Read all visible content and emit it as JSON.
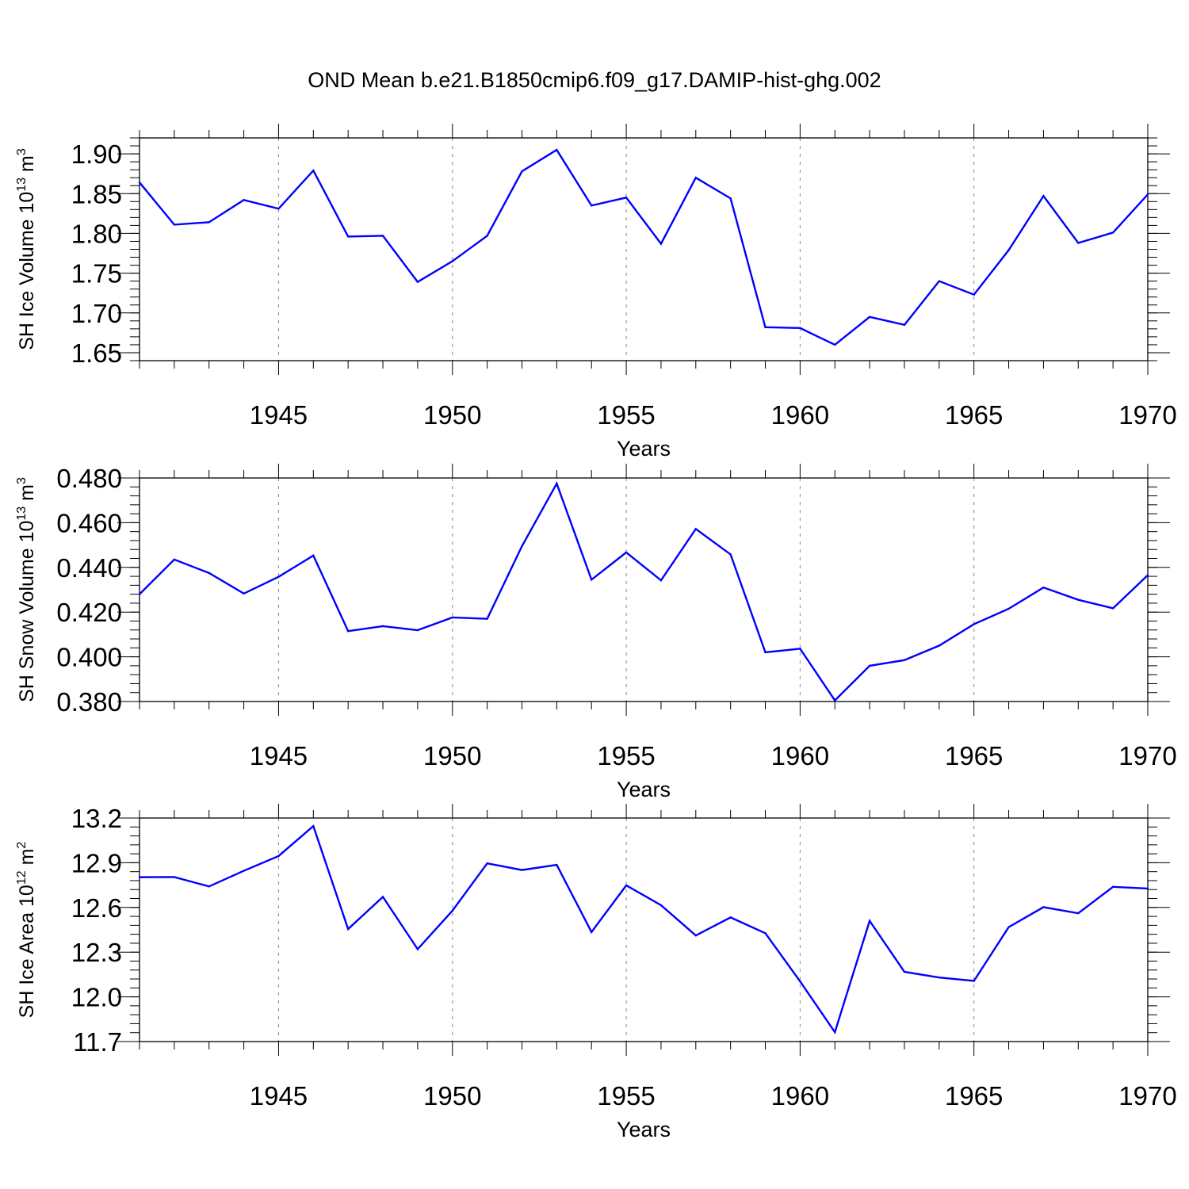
{
  "title": "OND Mean b.e21.B1850cmip6.f09_g17.DAMIP-hist-ghg.002",
  "chart_data": [
    {
      "type": "line",
      "title": "",
      "xlabel": "Years",
      "ylabel_main": "SH Ice Volume 10",
      "ylabel_exp": "13",
      "ylabel_unit": " m",
      "ylabel_unit_exp": "3",
      "xlim": [
        1941,
        1970
      ],
      "ylim": [
        1.64,
        1.92
      ],
      "xticks": [
        1945,
        1950,
        1955,
        1960,
        1965,
        1970
      ],
      "xtick_labels": [
        "1945",
        "1950",
        "1955",
        "1960",
        "1965",
        "1970"
      ],
      "yticks": [
        1.65,
        1.7,
        1.75,
        1.8,
        1.85,
        1.9
      ],
      "ytick_labels": [
        "1.65",
        "1.70",
        "1.75",
        "1.80",
        "1.85",
        "1.90"
      ],
      "grid": "vertical-dashed-at-major-x",
      "color": "#0000ff",
      "x": [
        1941,
        1942,
        1943,
        1944,
        1945,
        1946,
        1947,
        1948,
        1949,
        1950,
        1951,
        1952,
        1953,
        1954,
        1955,
        1956,
        1957,
        1958,
        1959,
        1960,
        1961,
        1962,
        1963,
        1964,
        1965,
        1966,
        1967,
        1968,
        1969,
        1970
      ],
      "values": [
        1.864,
        1.811,
        1.814,
        1.842,
        1.831,
        1.879,
        1.796,
        1.797,
        1.739,
        1.765,
        1.797,
        1.878,
        1.905,
        1.835,
        1.845,
        1.787,
        1.87,
        1.844,
        1.682,
        1.681,
        1.66,
        1.695,
        1.685,
        1.74,
        1.723,
        1.779,
        1.847,
        1.788,
        1.801,
        1.849
      ]
    },
    {
      "type": "line",
      "title": "",
      "xlabel": "Years",
      "ylabel_main": "SH Snow Volume 10",
      "ylabel_exp": "13",
      "ylabel_unit": " m",
      "ylabel_unit_exp": "3",
      "xlim": [
        1941,
        1970
      ],
      "ylim": [
        0.38,
        0.48
      ],
      "xticks": [
        1945,
        1950,
        1955,
        1960,
        1965,
        1970
      ],
      "xtick_labels": [
        "1945",
        "1950",
        "1955",
        "1960",
        "1965",
        "1970"
      ],
      "yticks": [
        0.38,
        0.4,
        0.42,
        0.44,
        0.46,
        0.48
      ],
      "ytick_labels": [
        "0.380",
        "0.400",
        "0.420",
        "0.440",
        "0.460",
        "0.480"
      ],
      "grid": "vertical-dashed-at-major-x",
      "color": "#0000ff",
      "x": [
        1941,
        1942,
        1943,
        1944,
        1945,
        1946,
        1947,
        1948,
        1949,
        1950,
        1951,
        1952,
        1953,
        1954,
        1955,
        1956,
        1957,
        1958,
        1959,
        1960,
        1961,
        1962,
        1963,
        1964,
        1965,
        1966,
        1967,
        1968,
        1969,
        1970
      ],
      "values": [
        0.428,
        0.4435,
        0.4375,
        0.4283,
        0.4358,
        0.4453,
        0.4115,
        0.4137,
        0.4119,
        0.4176,
        0.417,
        0.4495,
        0.4775,
        0.4345,
        0.4467,
        0.4342,
        0.4572,
        0.4458,
        0.402,
        0.4036,
        0.3805,
        0.396,
        0.3985,
        0.405,
        0.4146,
        0.4215,
        0.431,
        0.4255,
        0.4217,
        0.4365
      ]
    },
    {
      "type": "line",
      "title": "",
      "xlabel": "Years",
      "ylabel_main": "SH Ice Area 10",
      "ylabel_exp": "12",
      "ylabel_unit": " m",
      "ylabel_unit_exp": "2",
      "xlim": [
        1941,
        1970
      ],
      "ylim": [
        11.7,
        13.2
      ],
      "xticks": [
        1945,
        1950,
        1955,
        1960,
        1965,
        1970
      ],
      "xtick_labels": [
        "1945",
        "1950",
        "1955",
        "1960",
        "1965",
        "1970"
      ],
      "yticks": [
        11.7,
        12.0,
        12.3,
        12.6,
        12.9,
        13.2
      ],
      "ytick_labels": [
        "11.7",
        "12.0",
        "12.3",
        "12.6",
        "12.9",
        "13.2"
      ],
      "grid": "vertical-dashed-at-major-x",
      "color": "#0000ff",
      "x": [
        1941,
        1942,
        1943,
        1944,
        1945,
        1946,
        1947,
        1948,
        1949,
        1950,
        1951,
        1952,
        1953,
        1954,
        1955,
        1956,
        1957,
        1958,
        1959,
        1960,
        1961,
        1962,
        1963,
        1964,
        1965,
        1966,
        1967,
        1968,
        1969,
        1970
      ],
      "values": [
        12.803,
        12.804,
        12.741,
        12.846,
        12.945,
        13.146,
        12.455,
        12.671,
        12.32,
        12.578,
        12.896,
        12.851,
        12.886,
        12.435,
        12.748,
        12.615,
        12.412,
        12.533,
        12.427,
        12.104,
        11.763,
        12.51,
        12.168,
        12.13,
        12.107,
        12.468,
        12.602,
        12.561,
        12.738,
        12.727
      ]
    }
  ]
}
